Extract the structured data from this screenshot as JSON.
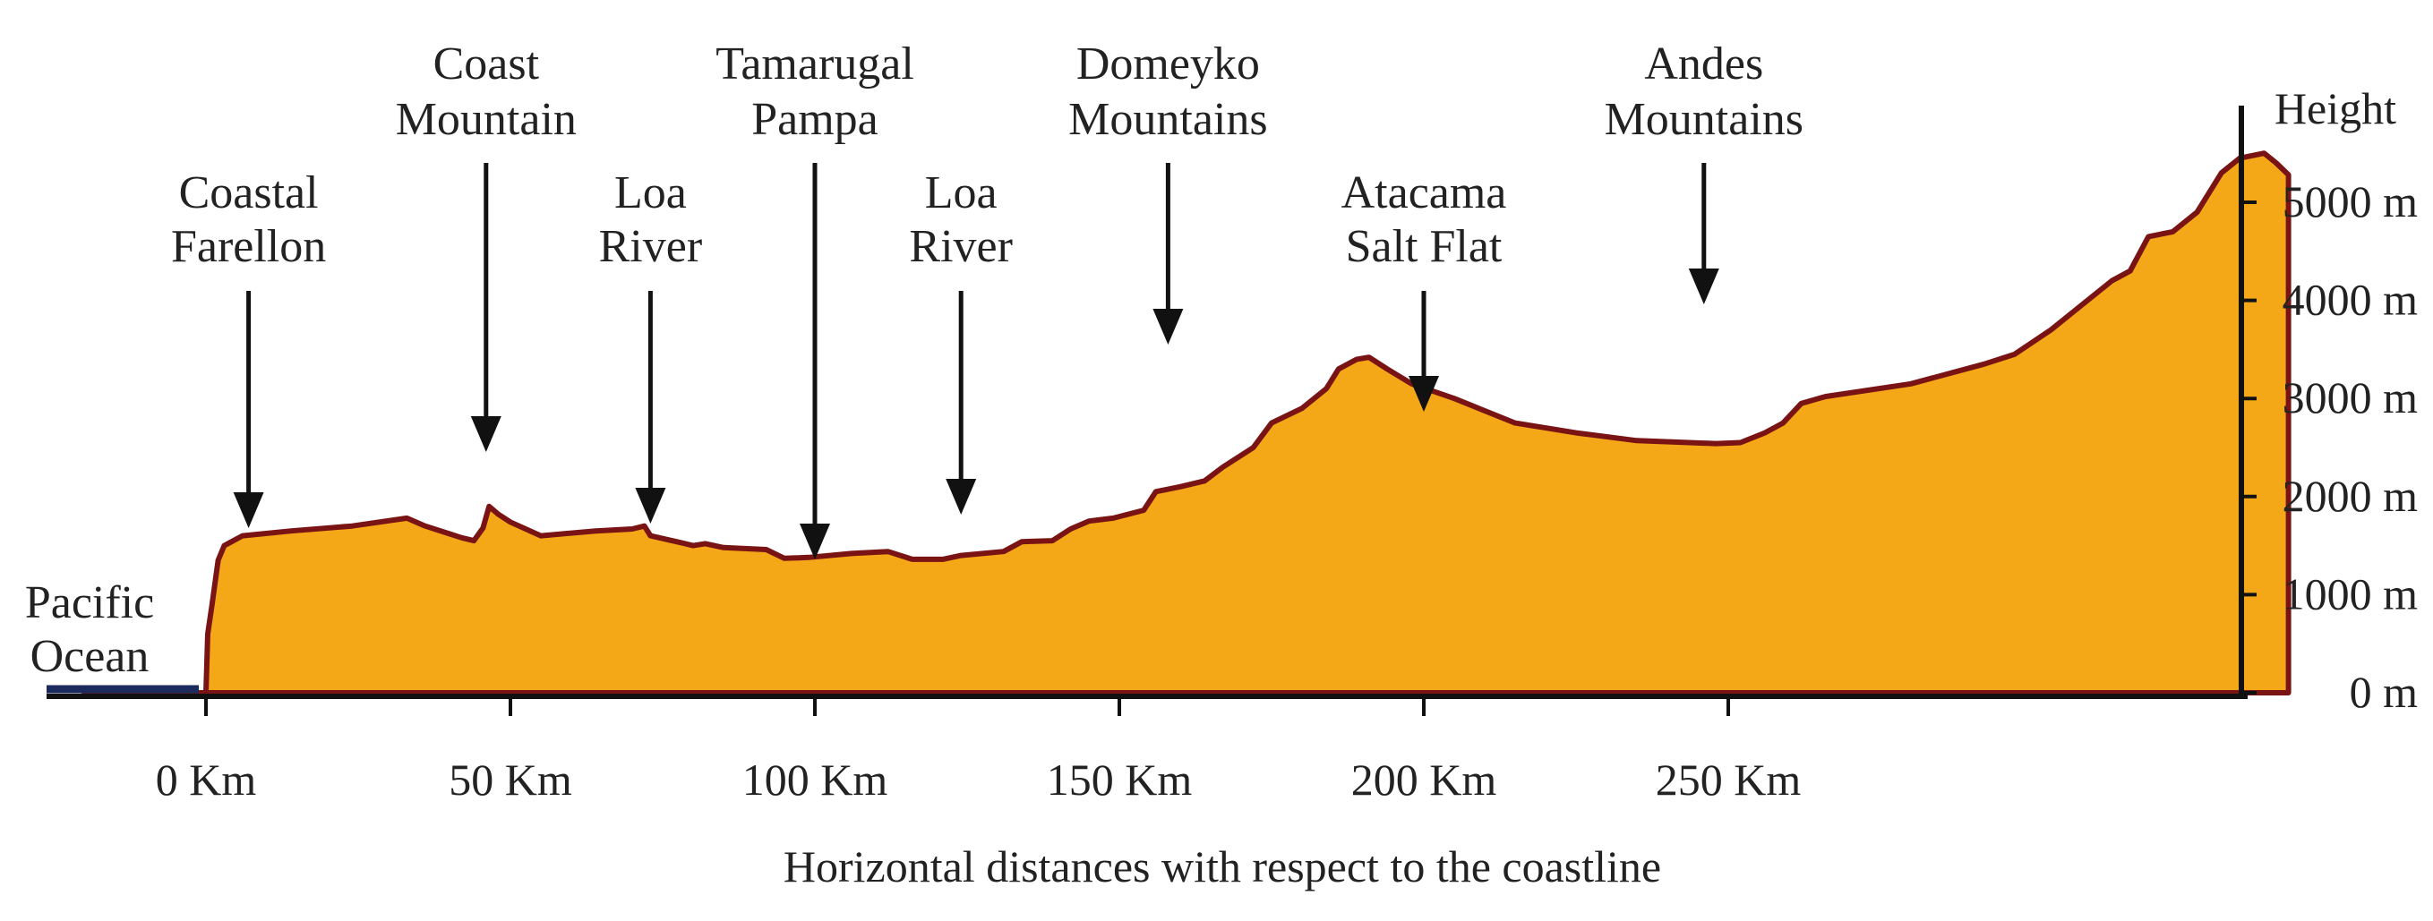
{
  "colors": {
    "terrain_fill": "#F5A817",
    "terrain_outline": "#7A1414",
    "ocean": "#1B2B5E",
    "axis": "#111111",
    "text": "#222222"
  },
  "axis": {
    "height_label": "Height",
    "x_title": "Horizontal distances with respect to the coastline",
    "x_ticks": [
      {
        "value": 0,
        "label": "0 Km"
      },
      {
        "value": 50,
        "label": "50 Km"
      },
      {
        "value": 100,
        "label": "100 Km"
      },
      {
        "value": 150,
        "label": "150 Km"
      },
      {
        "value": 200,
        "label": "200 Km"
      },
      {
        "value": 250,
        "label": "250 Km"
      }
    ],
    "y_ticks": [
      {
        "value": 0,
        "label": "0 m"
      },
      {
        "value": 1000,
        "label": "1000 m"
      },
      {
        "value": 2000,
        "label": "2000 m"
      },
      {
        "value": 3000,
        "label": "3000 m"
      },
      {
        "value": 4000,
        "label": "4000 m"
      },
      {
        "value": 5000,
        "label": "5000 m"
      }
    ]
  },
  "features": [
    {
      "name": "coastal-farellon",
      "line1": "Coastal",
      "line2": "Farellon",
      "km": 7
    },
    {
      "name": "coast-mountain",
      "line1": "Coast",
      "line2": "Mountain",
      "km": 46
    },
    {
      "name": "loa-river-west",
      "line1": "Loa",
      "line2": "River",
      "km": 73
    },
    {
      "name": "tamarugal-pampa",
      "line1": "Tamarugal",
      "line2": "Pampa",
      "km": 100
    },
    {
      "name": "loa-river-east",
      "line1": "Loa",
      "line2": "River",
      "km": 124
    },
    {
      "name": "domeyko-mountains",
      "line1": "Domeyko",
      "line2": "Mountains",
      "km": 158
    },
    {
      "name": "atacama-salt-flat",
      "line1": "Atacama",
      "line2": "Salt Flat",
      "km": 200
    },
    {
      "name": "andes-mountains",
      "line1": "Andes",
      "line2": "Mountains",
      "km": 246
    }
  ],
  "ocean_label": {
    "line1": "Pacific",
    "line2": "Ocean"
  },
  "profile": [
    [
      -20,
      0
    ],
    [
      0,
      0
    ],
    [
      0.3,
      600
    ],
    [
      1,
      900
    ],
    [
      2,
      1350
    ],
    [
      3,
      1500
    ],
    [
      6,
      1600
    ],
    [
      14,
      1650
    ],
    [
      24,
      1700
    ],
    [
      33,
      1780
    ],
    [
      36,
      1700
    ],
    [
      42,
      1580
    ],
    [
      44,
      1550
    ],
    [
      45.5,
      1680
    ],
    [
      46.5,
      1900
    ],
    [
      48,
      1820
    ],
    [
      50,
      1740
    ],
    [
      55,
      1600
    ],
    [
      64,
      1650
    ],
    [
      70,
      1670
    ],
    [
      72,
      1700
    ],
    [
      73,
      1600
    ],
    [
      78,
      1530
    ],
    [
      80,
      1500
    ],
    [
      82,
      1520
    ],
    [
      85,
      1480
    ],
    [
      92,
      1460
    ],
    [
      95,
      1370
    ],
    [
      99,
      1380
    ],
    [
      106,
      1420
    ],
    [
      112,
      1440
    ],
    [
      116,
      1360
    ],
    [
      121,
      1360
    ],
    [
      124,
      1400
    ],
    [
      131,
      1440
    ],
    [
      134,
      1540
    ],
    [
      139,
      1550
    ],
    [
      142,
      1670
    ],
    [
      145,
      1750
    ],
    [
      149,
      1780
    ],
    [
      154,
      1860
    ],
    [
      156,
      2050
    ],
    [
      160,
      2100
    ],
    [
      164,
      2160
    ],
    [
      167,
      2300
    ],
    [
      172,
      2500
    ],
    [
      175,
      2750
    ],
    [
      180,
      2900
    ],
    [
      184,
      3100
    ],
    [
      186,
      3300
    ],
    [
      189,
      3400
    ],
    [
      191,
      3420
    ],
    [
      194,
      3300
    ],
    [
      198,
      3150
    ],
    [
      205,
      3000
    ],
    [
      215,
      2750
    ],
    [
      225,
      2650
    ],
    [
      235,
      2570
    ],
    [
      248,
      2540
    ],
    [
      252,
      2550
    ],
    [
      256,
      2650
    ],
    [
      259,
      2750
    ],
    [
      262,
      2950
    ],
    [
      266,
      3020
    ],
    [
      280,
      3150
    ],
    [
      292,
      3350
    ],
    [
      297,
      3450
    ],
    [
      303,
      3700
    ],
    [
      308,
      3950
    ],
    [
      313,
      4200
    ],
    [
      316,
      4300
    ],
    [
      319,
      4650
    ],
    [
      323,
      4700
    ],
    [
      327,
      4900
    ],
    [
      331,
      5300
    ],
    [
      334,
      5450
    ],
    [
      338,
      5500
    ],
    [
      340,
      5400
    ],
    [
      342,
      5280
    ]
  ]
}
